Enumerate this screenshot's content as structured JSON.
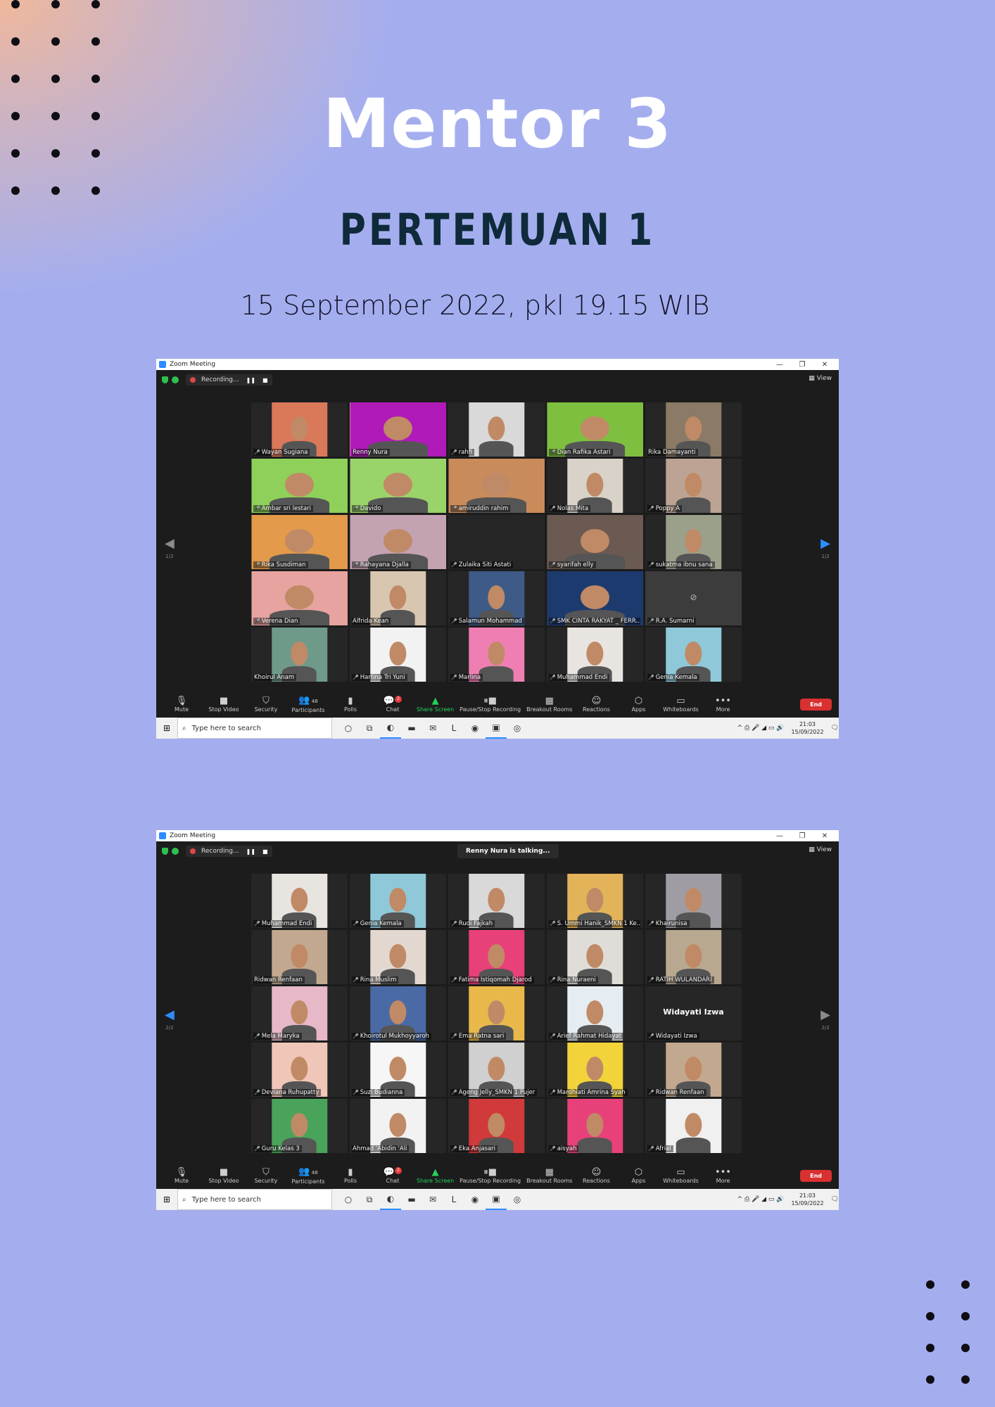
{
  "page": {
    "title": "Mentor 3",
    "subtitle": "PERTEMUAN 1",
    "datetime": "15 September 2022, pkl 19.15 WIB"
  },
  "colors": {
    "background": "#a4aeef",
    "title": "#ffffff",
    "subtitle": "#0f2a3a",
    "zoom_bg": "#1c1c1c",
    "end_button": "#d93030",
    "share_green": "#24d05a",
    "nav_blue": "#2d8cff"
  },
  "windows": [
    {
      "window_title": "Zoom Meeting",
      "recording_label": "Recording...",
      "view_label": "View",
      "talking": "",
      "page_indicator": "1/2",
      "active_arrow": "right",
      "participants": [
        {
          "name": "Wayan Sugiana",
          "muted": true,
          "tone": "#d9795a"
        },
        {
          "name": "Renny Nura",
          "muted": false,
          "speaking": true,
          "tone": "#b01ab8"
        },
        {
          "name": "rahfi",
          "muted": true,
          "tone": "#d9d9d9"
        },
        {
          "name": "Dian Rafika Astari",
          "muted": true,
          "tone": "#7fbf3f"
        },
        {
          "name": "Rika Damayanti",
          "muted": false,
          "tone": "#8a7a66"
        },
        {
          "name": "Ambar sri lestari",
          "muted": true,
          "tone": "#8ed05a"
        },
        {
          "name": "Davido",
          "muted": true,
          "tone": "#9ad36a"
        },
        {
          "name": "amiruddin rahim",
          "muted": true,
          "tone": "#c98b5a"
        },
        {
          "name": "Nolas Mita",
          "muted": true,
          "tone": "#d8d2c8"
        },
        {
          "name": "Poppy A",
          "muted": true,
          "tone": "#bca393"
        },
        {
          "name": "Rika Susdiman",
          "muted": true,
          "tone": "#e39a4a"
        },
        {
          "name": "Rahayana Djalla",
          "muted": true,
          "tone": "#c3a2b2"
        },
        {
          "name": "Zulaika Siti Astati",
          "muted": true,
          "tone": "#262626",
          "empty": true
        },
        {
          "name": "syarifah elly",
          "muted": true,
          "tone": "#6b5a52"
        },
        {
          "name": "sukatma ibnu sana",
          "muted": true,
          "tone": "#9aa08a"
        },
        {
          "name": "Verena Dian",
          "muted": true,
          "tone": "#e6a3a0"
        },
        {
          "name": "Alfrida Kean",
          "muted": false,
          "tone": "#d8c6b0"
        },
        {
          "name": "Salamun Mohammad",
          "muted": true,
          "tone": "#3e5a86"
        },
        {
          "name": "SMK CINTA RAKYAT _ FERR...",
          "muted": true,
          "tone": "#1d3a6e"
        },
        {
          "name": "R.A. Sumarni",
          "muted": true,
          "tone": "#3c3c3c",
          "camoff": true
        },
        {
          "name": "Khoirul Anam",
          "muted": false,
          "tone": "#6f9a8a"
        },
        {
          "name": "Hartina Tri Yuni",
          "muted": true,
          "tone": "#f2f2f2"
        },
        {
          "name": "Marlina",
          "muted": true,
          "tone": "#ef7fb2"
        },
        {
          "name": "Muhammad Endi",
          "muted": true,
          "tone": "#e8e4e0"
        },
        {
          "name": "Genia Kemala",
          "muted": true,
          "tone": "#8fc8d8"
        }
      ]
    },
    {
      "window_title": "Zoom Meeting",
      "recording_label": "Recording...",
      "view_label": "View",
      "talking": "Renny Nura is talking...",
      "page_indicator": "2/2",
      "active_arrow": "left",
      "participants": [
        {
          "name": "Muhammad Endi",
          "muted": true,
          "tone": "#e8e4e0"
        },
        {
          "name": "Genia Kemala",
          "muted": true,
          "tone": "#8fc8d8"
        },
        {
          "name": "Rudi Fajkah",
          "muted": true,
          "tone": "#d9d9d9"
        },
        {
          "name": "S. Ummi Hanik_SMKN 1 Ke...",
          "muted": true,
          "tone": "#e3b35a"
        },
        {
          "name": "Khairunisa",
          "muted": true,
          "tone": "#a09ca4"
        },
        {
          "name": "Ridwan Renfaan",
          "muted": false,
          "tone": "#c2a88e"
        },
        {
          "name": "Rina Muslim",
          "muted": true,
          "tone": "#e2d8d0"
        },
        {
          "name": "Fatima Istiqomah Djarod",
          "muted": true,
          "tone": "#e8417a"
        },
        {
          "name": "Rina Nuraeni",
          "muted": true,
          "tone": "#e0ddd8"
        },
        {
          "name": "RATIH WULANDARI",
          "muted": true,
          "tone": "#b8a890"
        },
        {
          "name": "Mela Maryka",
          "muted": true,
          "tone": "#e6b8c8"
        },
        {
          "name": "Khoirotul Mukhoyyaroh",
          "muted": true,
          "tone": "#4a6aa6"
        },
        {
          "name": "Ema Ratna sari",
          "muted": true,
          "tone": "#e9b84a"
        },
        {
          "name": "Arief Rahmat Hidayat",
          "muted": true,
          "tone": "#e6edf2"
        },
        {
          "name": "Widayati Izwa",
          "muted": true,
          "tone": "#262626",
          "text": "Widayati Izwa"
        },
        {
          "name": "Deviana Ruhupatty",
          "muted": true,
          "tone": "#f0c6b8"
        },
        {
          "name": "Suzi Budianna",
          "muted": true,
          "tone": "#f6f6f6"
        },
        {
          "name": "Ageng Jelly_SMKN 1 Pujer",
          "muted": true,
          "tone": "#d0d0d0"
        },
        {
          "name": "Mardhiati Amrina Syah",
          "muted": true,
          "tone": "#f2d33a"
        },
        {
          "name": "Ridwan Renfaan",
          "muted": true,
          "tone": "#c2a88e"
        },
        {
          "name": "Guru Kelas 3",
          "muted": true,
          "tone": "#4aa35a"
        },
        {
          "name": "Ahmad 'Abidin 'Ali",
          "muted": false,
          "tone": "#f2f2f2"
        },
        {
          "name": "Eka Anjasari",
          "muted": true,
          "tone": "#d03a3a"
        },
        {
          "name": "aisyah",
          "muted": true,
          "tone": "#e8417a"
        },
        {
          "name": "Afrial",
          "muted": true,
          "tone": "#f0f0f0"
        }
      ]
    }
  ],
  "toolbar": [
    {
      "label": "Mute",
      "icon": "microphone-icon",
      "glyph": "🎙",
      "caret": true
    },
    {
      "label": "Stop Video",
      "icon": "video-camera-icon",
      "glyph": "■",
      "caret": true
    },
    {
      "label": "Security",
      "icon": "shield-icon",
      "glyph": "⛉"
    },
    {
      "label": "Participants",
      "icon": "participants-icon",
      "glyph": "👥",
      "count": "48",
      "caret": true
    },
    {
      "label": "Polls",
      "icon": "polls-icon",
      "glyph": "▮"
    },
    {
      "label": "Chat",
      "icon": "chat-icon",
      "glyph": "💬",
      "badge": "2",
      "caret": true
    },
    {
      "label": "Share Screen",
      "icon": "share-screen-icon",
      "glyph": "▲",
      "share": true,
      "caret": true
    },
    {
      "label": "Pause/Stop Recording",
      "icon": "pause-stop-recording-icon",
      "glyph": "⏸■"
    },
    {
      "label": "Breakout Rooms",
      "icon": "breakout-rooms-icon",
      "glyph": "▦"
    },
    {
      "label": "Reactions",
      "icon": "reactions-icon",
      "glyph": "☺",
      "caret": true
    },
    {
      "label": "Apps",
      "icon": "apps-icon",
      "glyph": "⬡"
    },
    {
      "label": "Whiteboards",
      "icon": "whiteboards-icon",
      "glyph": "▭",
      "caret": true
    },
    {
      "label": "More",
      "icon": "more-icon",
      "glyph": "•••"
    }
  ],
  "end_label": "End",
  "taskbar": {
    "search_placeholder": "Type here to search",
    "time": "21:03",
    "date": "15/09/2022"
  }
}
